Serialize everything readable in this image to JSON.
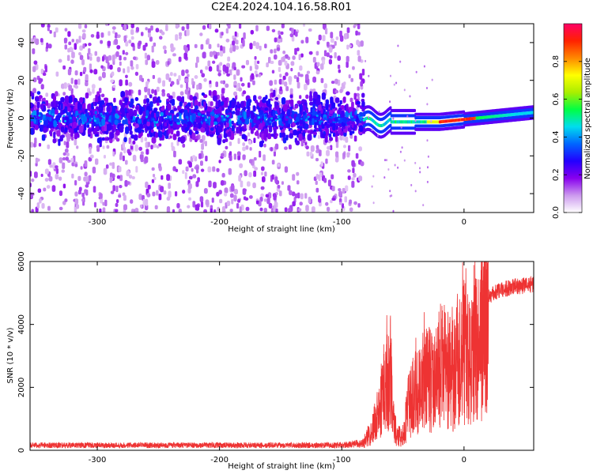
{
  "title": "C2E4.2024.104.16.58.R01",
  "colors": {
    "snr_line": "#ee3333",
    "colormap": [
      "#ffffff",
      "#cc99ee",
      "#8800ee",
      "#2200ff",
      "#0066ff",
      "#00ddee",
      "#00ff44",
      "#aaee00",
      "#ffff00",
      "#ff8800",
      "#ff2200",
      "#ff0066"
    ]
  },
  "chart_data": [
    {
      "type": "heatmap",
      "title": "",
      "xlabel": "Height of straight line (km)",
      "ylabel": "Frequency (Hz)",
      "xlim": [
        -355,
        57
      ],
      "ylim": [
        -50,
        50
      ],
      "x_ticks": [
        -300,
        -200,
        -100,
        0
      ],
      "y_ticks": [
        -40,
        -20,
        0,
        20,
        40
      ],
      "x_tick_labels": [
        "-300",
        "-200",
        "-100",
        "0"
      ],
      "y_tick_labels": [
        "-40",
        "-20",
        "0",
        "20",
        "40"
      ],
      "colorbar": {
        "label": "Normalized spectral amplitude",
        "range": [
          0,
          1
        ],
        "ticks": [
          0.0,
          0.2,
          0.4,
          0.6,
          0.8
        ],
        "tick_labels": [
          "0.0",
          "0.2",
          "0.4",
          "0.6",
          "0.8"
        ]
      },
      "features": {
        "band_center_hz": 0,
        "band_halfwidth_hz": 10,
        "scatter_cutoff_km": -82,
        "coherent_start_km": -82,
        "strong_region_km": [
          -20,
          10
        ]
      }
    },
    {
      "type": "line",
      "title": "",
      "xlabel": "Height of straight line (km)",
      "ylabel": "SNR (10 * v/v)",
      "xlim": [
        -355,
        57
      ],
      "ylim": [
        0,
        6000
      ],
      "x_ticks": [
        -300,
        -200,
        -100,
        0
      ],
      "y_ticks": [
        0,
        2000,
        4000,
        6000
      ],
      "x_tick_labels": [
        "-300",
        "-200",
        "-100",
        "0"
      ],
      "y_tick_labels": [
        "0",
        "2000",
        "4000",
        "6000"
      ],
      "series": [
        {
          "x": [
            -355,
            -300,
            -250,
            -200,
            -150,
            -100,
            -82,
            -75,
            -70,
            -65,
            -60,
            -58,
            -55,
            -50,
            -45,
            -40,
            -35,
            -30,
            -25,
            -20,
            -15,
            -10,
            -5,
            0,
            5,
            10,
            15,
            20,
            30,
            40,
            50,
            57
          ],
          "y": [
            200,
            200,
            200,
            200,
            200,
            200,
            300,
            800,
            1500,
            2500,
            3000,
            1200,
            600,
            500,
            1800,
            2200,
            2500,
            3000,
            2500,
            3200,
            3300,
            2800,
            3500,
            3800,
            3200,
            4000,
            4500,
            5000,
            5200,
            5300,
            5350,
            5400
          ]
        }
      ]
    }
  ]
}
